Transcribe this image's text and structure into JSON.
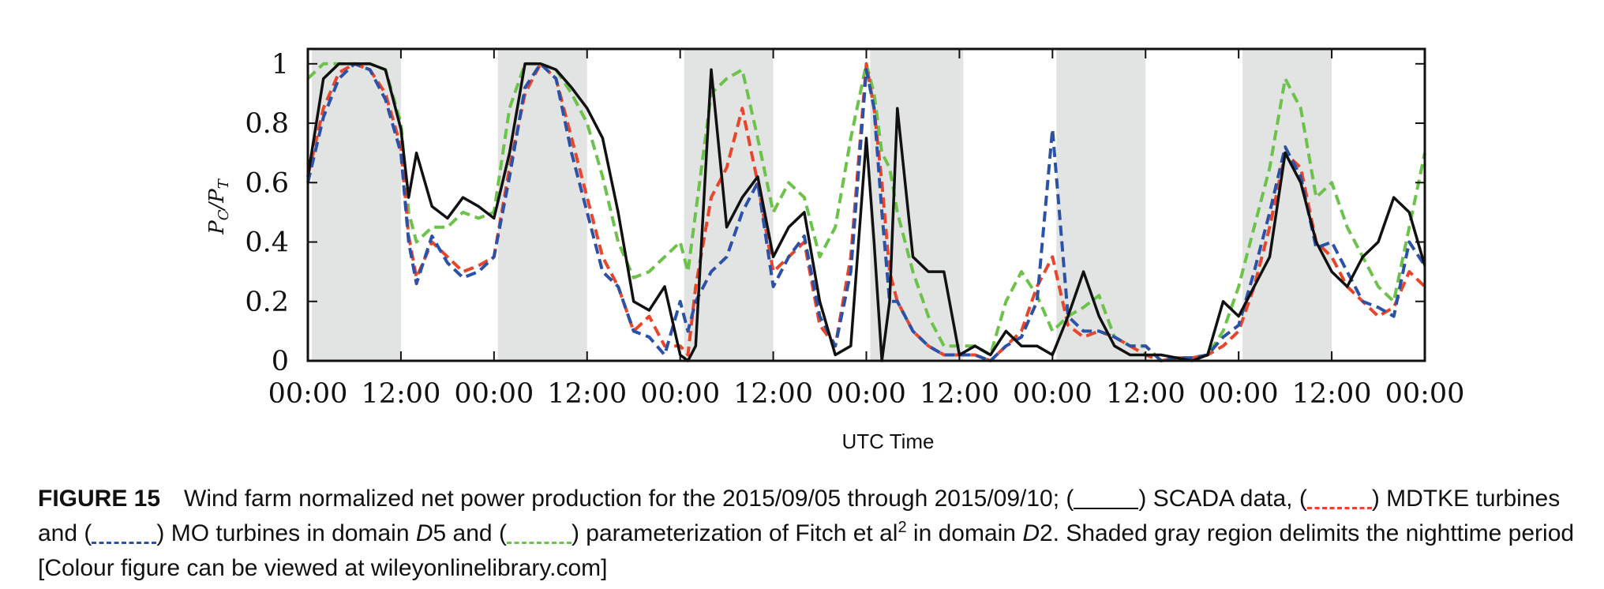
{
  "chart_data": {
    "type": "line",
    "title": "",
    "xlabel": "UTC Time",
    "ylabel": "P_C/P_T",
    "ylabel_main": "P",
    "ylabel_sub_c": "C",
    "ylabel_sub_t": "T",
    "ylabel_slash": "/",
    "xlim": [
      0,
      144
    ],
    "ylim": [
      0,
      1.05
    ],
    "x_ticks": [
      0,
      12,
      24,
      36,
      48,
      60,
      72,
      84,
      96,
      108,
      120,
      132,
      144
    ],
    "x_tick_labels": [
      "00:00",
      "12:00",
      "00:00",
      "12:00",
      "00:00",
      "12:00",
      "00:00",
      "12:00",
      "00:00",
      "12:00",
      "00:00",
      "12:00",
      "00:00"
    ],
    "y_ticks": [
      0,
      0.2,
      0.4,
      0.6,
      0.8,
      1
    ],
    "y_tick_labels": [
      "0",
      "0.2",
      "0.4",
      "0.6",
      "0.8",
      "1"
    ],
    "night_periods": [
      [
        0.5,
        12
      ],
      [
        24.5,
        36
      ],
      [
        48.5,
        60
      ],
      [
        72.5,
        84.5
      ],
      [
        96.5,
        108
      ],
      [
        120.5,
        132
      ]
    ],
    "grid": false,
    "x": [
      0,
      2,
      4,
      6,
      8,
      10,
      12,
      13,
      14,
      16,
      18,
      20,
      22,
      24,
      26,
      28,
      30,
      32,
      34,
      36,
      38,
      40,
      42,
      44,
      46,
      48,
      49,
      50,
      52,
      54,
      56,
      58,
      60,
      62,
      64,
      66,
      68,
      70,
      72,
      73,
      74,
      75,
      76,
      78,
      80,
      82,
      84,
      86,
      88,
      90,
      92,
      94,
      96,
      98,
      100,
      102,
      104,
      106,
      108,
      110,
      112,
      114,
      116,
      118,
      120,
      122,
      124,
      126,
      128,
      130,
      132,
      134,
      136,
      138,
      140,
      142,
      144
    ],
    "series": [
      {
        "name": "SCADA data",
        "color": "#111111",
        "dash": "solid",
        "values": [
          0.62,
          0.95,
          1.0,
          1.0,
          1.0,
          0.98,
          0.78,
          0.55,
          0.7,
          0.52,
          0.48,
          0.55,
          0.52,
          0.48,
          0.7,
          1.0,
          1.0,
          0.98,
          0.92,
          0.85,
          0.75,
          0.5,
          0.2,
          0.17,
          0.25,
          0.02,
          0.0,
          0.05,
          0.98,
          0.45,
          0.55,
          0.62,
          0.35,
          0.45,
          0.5,
          0.2,
          0.02,
          0.05,
          0.75,
          0.4,
          0.0,
          0.2,
          0.85,
          0.35,
          0.3,
          0.3,
          0.02,
          0.05,
          0.02,
          0.1,
          0.05,
          0.05,
          0.02,
          0.15,
          0.3,
          0.15,
          0.05,
          0.02,
          0.02,
          0.02,
          0.01,
          0.0,
          0.02,
          0.2,
          0.15,
          0.25,
          0.35,
          0.7,
          0.6,
          0.4,
          0.3,
          0.25,
          0.35,
          0.4,
          0.55,
          0.5,
          0.32
        ]
      },
      {
        "name": "MDTKE turbines in domain D5",
        "color": "#e8452a",
        "dash": "dashed",
        "values": [
          0.62,
          0.85,
          0.97,
          1.0,
          0.98,
          0.9,
          0.72,
          0.42,
          0.28,
          0.4,
          0.35,
          0.3,
          0.32,
          0.35,
          0.65,
          0.9,
          1.0,
          0.95,
          0.75,
          0.55,
          0.35,
          0.25,
          0.1,
          0.15,
          0.05,
          0.05,
          0.02,
          0.25,
          0.55,
          0.65,
          0.85,
          0.6,
          0.3,
          0.35,
          0.4,
          0.12,
          0.05,
          0.35,
          1.0,
          0.85,
          0.6,
          0.3,
          0.2,
          0.1,
          0.05,
          0.02,
          0.02,
          0.02,
          0.0,
          0.05,
          0.1,
          0.25,
          0.35,
          0.12,
          0.08,
          0.1,
          0.08,
          0.05,
          0.02,
          0.0,
          0.01,
          0.01,
          0.02,
          0.05,
          0.1,
          0.25,
          0.45,
          0.7,
          0.65,
          0.4,
          0.35,
          0.25,
          0.2,
          0.15,
          0.18,
          0.3,
          0.25
        ]
      },
      {
        "name": "MO turbines in domain D5",
        "color": "#2c52a8",
        "dash": "dashed",
        "values": [
          0.6,
          0.82,
          0.95,
          1.0,
          0.98,
          0.88,
          0.7,
          0.4,
          0.26,
          0.42,
          0.33,
          0.28,
          0.3,
          0.35,
          0.62,
          0.92,
          1.0,
          0.95,
          0.7,
          0.5,
          0.3,
          0.25,
          0.1,
          0.08,
          0.02,
          0.2,
          0.1,
          0.2,
          0.3,
          0.35,
          0.5,
          0.6,
          0.25,
          0.35,
          0.42,
          0.15,
          0.05,
          0.3,
          0.98,
          0.85,
          0.5,
          0.2,
          0.2,
          0.1,
          0.05,
          0.02,
          0.02,
          0.02,
          0.0,
          0.05,
          0.08,
          0.2,
          0.78,
          0.15,
          0.1,
          0.1,
          0.08,
          0.05,
          0.05,
          0.0,
          0.01,
          0.01,
          0.02,
          0.08,
          0.12,
          0.3,
          0.5,
          0.72,
          0.62,
          0.38,
          0.4,
          0.3,
          0.2,
          0.18,
          0.15,
          0.4,
          0.32
        ]
      },
      {
        "name": "parameterization of Fitch et al in domain D2",
        "color": "#6cc24a",
        "dash": "dashed",
        "values": [
          0.95,
          1.0,
          1.0,
          1.0,
          1.0,
          0.98,
          0.8,
          0.5,
          0.4,
          0.45,
          0.45,
          0.5,
          0.48,
          0.5,
          0.85,
          1.0,
          1.0,
          0.98,
          0.9,
          0.8,
          0.62,
          0.4,
          0.28,
          0.3,
          0.35,
          0.4,
          0.3,
          0.5,
          0.9,
          0.95,
          0.98,
          0.75,
          0.5,
          0.6,
          0.55,
          0.35,
          0.45,
          0.75,
          1.0,
          0.9,
          0.7,
          0.65,
          0.5,
          0.3,
          0.15,
          0.05,
          0.05,
          0.05,
          0.02,
          0.2,
          0.3,
          0.22,
          0.1,
          0.15,
          0.18,
          0.22,
          0.08,
          0.05,
          0.05,
          0.0,
          0.01,
          0.01,
          0.02,
          0.1,
          0.25,
          0.45,
          0.65,
          0.95,
          0.85,
          0.55,
          0.6,
          0.45,
          0.35,
          0.25,
          0.2,
          0.45,
          0.7
        ]
      }
    ]
  },
  "caption": {
    "label": "FIGURE 15",
    "t1": "Wind farm normalized net power production for the 2015/09/05 through 2015/09/10; (",
    "t2": ") SCADA data, (",
    "t3": ") MDTKE turbines and (",
    "t4": ") MO turbines in domain ",
    "t4_italic": "D",
    "t4_num": "5 and (",
    "t5": ") parameterization of Fitch et al",
    "sup": "2",
    "t6": " in domain ",
    "t6_italic": "D",
    "t6_num": "2. Shaded gray region delimits the nighttime period [Colour figure can be viewed at wileyonlinelibrary.com]"
  }
}
